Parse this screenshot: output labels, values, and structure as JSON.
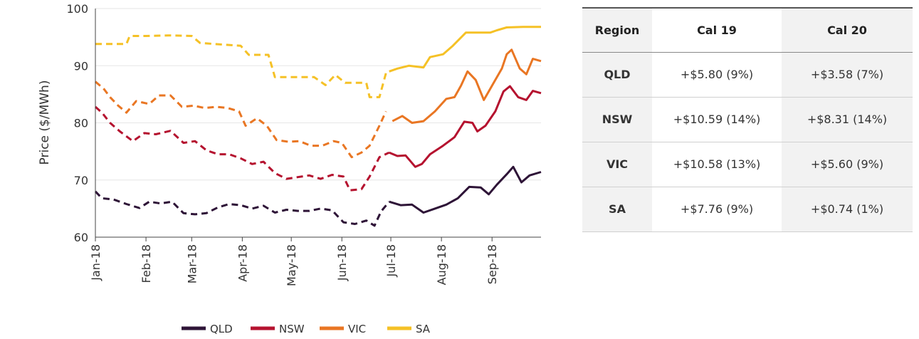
{
  "chart_data": {
    "type": "line",
    "ylabel": "Price ($/MWh)",
    "xlabel": "",
    "ylim": [
      60,
      100
    ],
    "yticks": [
      60,
      70,
      80,
      90,
      100
    ],
    "xticks": [
      "Jan-18",
      "Feb-18",
      "Mar-18",
      "Apr-18",
      "May-18",
      "Jun-18",
      "Jul-18",
      "Aug-18",
      "Sep-18"
    ],
    "x_domain": [
      "2018-01-01",
      "2018-10-01"
    ],
    "grid": "horizontal",
    "legend_position": "bottom",
    "dashed_until": "2018-06-30",
    "series": [
      {
        "name": "QLD",
        "color": "#2e1437",
        "points": [
          [
            "2018-01-01",
            68.0
          ],
          [
            "2018-01-05",
            66.8
          ],
          [
            "2018-01-12",
            66.6
          ],
          [
            "2018-01-20",
            65.8
          ],
          [
            "2018-01-28",
            65.1
          ],
          [
            "2018-02-03",
            66.2
          ],
          [
            "2018-02-10",
            65.9
          ],
          [
            "2018-02-17",
            66.2
          ],
          [
            "2018-02-24",
            64.2
          ],
          [
            "2018-03-03",
            64.0
          ],
          [
            "2018-03-10",
            64.2
          ],
          [
            "2018-03-17",
            65.2
          ],
          [
            "2018-03-24",
            65.8
          ],
          [
            "2018-03-31",
            65.6
          ],
          [
            "2018-04-07",
            65.0
          ],
          [
            "2018-04-14",
            65.5
          ],
          [
            "2018-04-21",
            64.3
          ],
          [
            "2018-04-28",
            64.8
          ],
          [
            "2018-05-05",
            64.6
          ],
          [
            "2018-05-12",
            64.6
          ],
          [
            "2018-05-19",
            65.0
          ],
          [
            "2018-05-26",
            64.7
          ],
          [
            "2018-06-02",
            62.6
          ],
          [
            "2018-06-09",
            62.3
          ],
          [
            "2018-06-16",
            62.9
          ],
          [
            "2018-06-21",
            62.0
          ],
          [
            "2018-06-25",
            64.5
          ],
          [
            "2018-06-30",
            66.2
          ],
          [
            "2018-07-07",
            65.6
          ],
          [
            "2018-07-14",
            65.7
          ],
          [
            "2018-07-21",
            64.3
          ],
          [
            "2018-07-28",
            65.0
          ],
          [
            "2018-08-04",
            65.7
          ],
          [
            "2018-08-11",
            66.8
          ],
          [
            "2018-08-18",
            68.8
          ],
          [
            "2018-08-25",
            68.7
          ],
          [
            "2018-08-30",
            67.5
          ],
          [
            "2018-09-04",
            69.2
          ],
          [
            "2018-09-10",
            71.0
          ],
          [
            "2018-09-14",
            72.3
          ],
          [
            "2018-09-19",
            69.6
          ],
          [
            "2018-09-24",
            70.8
          ],
          [
            "2018-10-01",
            71.4
          ]
        ]
      },
      {
        "name": "NSW",
        "color": "#b5122f",
        "points": [
          [
            "2018-01-01",
            82.8
          ],
          [
            "2018-01-05",
            81.8
          ],
          [
            "2018-01-10",
            80.0
          ],
          [
            "2018-01-16",
            78.5
          ],
          [
            "2018-01-24",
            76.8
          ],
          [
            "2018-01-31",
            78.2
          ],
          [
            "2018-02-07",
            78.0
          ],
          [
            "2018-02-16",
            78.6
          ],
          [
            "2018-02-24",
            76.5
          ],
          [
            "2018-03-03",
            76.8
          ],
          [
            "2018-03-10",
            75.2
          ],
          [
            "2018-03-17",
            74.5
          ],
          [
            "2018-03-24",
            74.5
          ],
          [
            "2018-03-31",
            73.8
          ],
          [
            "2018-04-07",
            72.8
          ],
          [
            "2018-04-14",
            73.2
          ],
          [
            "2018-04-21",
            71.2
          ],
          [
            "2018-04-28",
            70.2
          ],
          [
            "2018-05-05",
            70.5
          ],
          [
            "2018-05-12",
            70.8
          ],
          [
            "2018-05-19",
            70.2
          ],
          [
            "2018-05-26",
            70.9
          ],
          [
            "2018-06-02",
            70.6
          ],
          [
            "2018-06-06",
            68.2
          ],
          [
            "2018-06-13",
            68.4
          ],
          [
            "2018-06-18",
            70.6
          ],
          [
            "2018-06-24",
            74.0
          ],
          [
            "2018-06-30",
            74.8
          ],
          [
            "2018-07-05",
            74.2
          ],
          [
            "2018-07-10",
            74.3
          ],
          [
            "2018-07-16",
            72.3
          ],
          [
            "2018-07-20",
            72.8
          ],
          [
            "2018-07-25",
            74.5
          ],
          [
            "2018-08-02",
            76.0
          ],
          [
            "2018-08-09",
            77.5
          ],
          [
            "2018-08-15",
            80.2
          ],
          [
            "2018-08-20",
            80.0
          ],
          [
            "2018-08-23",
            78.5
          ],
          [
            "2018-08-28",
            79.5
          ],
          [
            "2018-09-03",
            82.0
          ],
          [
            "2018-09-08",
            85.5
          ],
          [
            "2018-09-12",
            86.4
          ],
          [
            "2018-09-17",
            84.5
          ],
          [
            "2018-09-22",
            84.0
          ],
          [
            "2018-09-26",
            85.6
          ],
          [
            "2018-10-01",
            85.2
          ]
        ]
      },
      {
        "name": "VIC",
        "color": "#e97623",
        "points": [
          [
            "2018-01-01",
            87.2
          ],
          [
            "2018-01-06",
            86.0
          ],
          [
            "2018-01-10",
            84.5
          ],
          [
            "2018-01-15",
            83.0
          ],
          [
            "2018-01-20",
            81.8
          ],
          [
            "2018-01-26",
            83.8
          ],
          [
            "2018-02-03",
            83.3
          ],
          [
            "2018-02-09",
            84.8
          ],
          [
            "2018-02-16",
            84.8
          ],
          [
            "2018-02-23",
            82.8
          ],
          [
            "2018-03-02",
            83.0
          ],
          [
            "2018-03-09",
            82.6
          ],
          [
            "2018-03-16",
            82.8
          ],
          [
            "2018-03-23",
            82.6
          ],
          [
            "2018-03-30",
            82.0
          ],
          [
            "2018-04-03",
            79.5
          ],
          [
            "2018-04-10",
            80.8
          ],
          [
            "2018-04-16",
            79.5
          ],
          [
            "2018-04-22",
            77.0
          ],
          [
            "2018-04-29",
            76.7
          ],
          [
            "2018-05-06",
            76.8
          ],
          [
            "2018-05-13",
            76.0
          ],
          [
            "2018-05-20",
            76.0
          ],
          [
            "2018-05-27",
            76.8
          ],
          [
            "2018-06-01",
            76.5
          ],
          [
            "2018-06-07",
            74.0
          ],
          [
            "2018-06-13",
            74.8
          ],
          [
            "2018-06-18",
            76.0
          ],
          [
            "2018-06-24",
            79.5
          ],
          [
            "2018-06-28",
            82.0
          ],
          [
            "2018-07-02",
            80.3
          ],
          [
            "2018-07-08",
            81.2
          ],
          [
            "2018-07-14",
            80.0
          ],
          [
            "2018-07-21",
            80.3
          ],
          [
            "2018-07-28",
            82.0
          ],
          [
            "2018-08-04",
            84.2
          ],
          [
            "2018-08-09",
            84.5
          ],
          [
            "2018-08-13",
            86.5
          ],
          [
            "2018-08-17",
            89.0
          ],
          [
            "2018-08-22",
            87.5
          ],
          [
            "2018-08-27",
            84.0
          ],
          [
            "2018-09-02",
            87.0
          ],
          [
            "2018-09-07",
            89.5
          ],
          [
            "2018-09-10",
            92.0
          ],
          [
            "2018-09-13",
            92.8
          ],
          [
            "2018-09-18",
            89.5
          ],
          [
            "2018-09-22",
            88.5
          ],
          [
            "2018-09-26",
            91.2
          ],
          [
            "2018-10-01",
            90.8
          ]
        ]
      },
      {
        "name": "SA",
        "color": "#f5c126",
        "points": [
          [
            "2018-01-01",
            93.8
          ],
          [
            "2018-01-10",
            93.8
          ],
          [
            "2018-01-20",
            93.8
          ],
          [
            "2018-01-22",
            95.2
          ],
          [
            "2018-02-01",
            95.2
          ],
          [
            "2018-02-15",
            95.3
          ],
          [
            "2018-03-01",
            95.2
          ],
          [
            "2018-03-06",
            94.0
          ],
          [
            "2018-03-15",
            93.8
          ],
          [
            "2018-03-31",
            93.5
          ],
          [
            "2018-04-05",
            91.9
          ],
          [
            "2018-04-17",
            91.9
          ],
          [
            "2018-04-21",
            88.0
          ],
          [
            "2018-05-05",
            88.0
          ],
          [
            "2018-05-15",
            88.0
          ],
          [
            "2018-05-22",
            86.6
          ],
          [
            "2018-05-28",
            88.4
          ],
          [
            "2018-06-03",
            87.0
          ],
          [
            "2018-06-16",
            87.0
          ],
          [
            "2018-06-18",
            84.5
          ],
          [
            "2018-06-24",
            84.5
          ],
          [
            "2018-06-28",
            88.7
          ],
          [
            "2018-06-30",
            89.0
          ],
          [
            "2018-07-05",
            89.5
          ],
          [
            "2018-07-12",
            90.0
          ],
          [
            "2018-07-21",
            89.7
          ],
          [
            "2018-07-25",
            91.5
          ],
          [
            "2018-08-02",
            92.0
          ],
          [
            "2018-08-08",
            93.5
          ],
          [
            "2018-08-16",
            95.8
          ],
          [
            "2018-08-31",
            95.8
          ],
          [
            "2018-09-04",
            96.2
          ],
          [
            "2018-09-10",
            96.7
          ],
          [
            "2018-09-20",
            96.8
          ],
          [
            "2018-10-01",
            96.8
          ]
        ]
      }
    ]
  },
  "table": {
    "headers": [
      "Region",
      "Cal 19",
      "Cal 20"
    ],
    "rows": [
      [
        "QLD",
        "+$5.80 (9%)",
        "+$3.58 (7%)"
      ],
      [
        "NSW",
        "+$10.59 (14%)",
        "+$8.31 (14%)"
      ],
      [
        "VIC",
        "+$10.58 (13%)",
        "+$5.60 (9%)"
      ],
      [
        "SA",
        "+$7.76 (9%)",
        "+$0.74 (1%)"
      ]
    ]
  }
}
